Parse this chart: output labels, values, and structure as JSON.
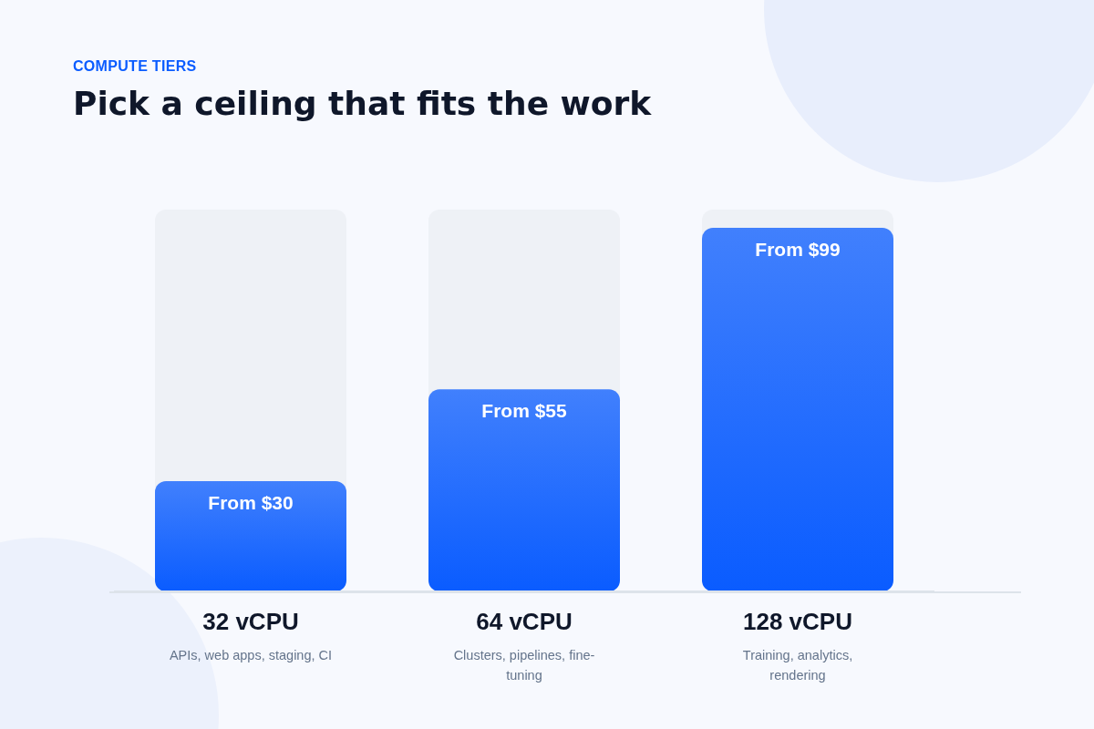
{
  "chart_data": {
    "type": "bar",
    "subtitle": "COMPUTE TIERS",
    "title": "Pick a ceiling that fits the work",
    "categories": [
      "32 vCPU",
      "64 vCPU",
      "128 vCPU"
    ],
    "values": [
      30,
      55,
      99
    ],
    "color": "#0a5cff",
    "value_labels": [
      "From $30",
      "From $55",
      "From $99"
    ],
    "annotations": [
      "APIs, web apps, staging, CI",
      "Clusters, pipelines, fine-tuning",
      "Training, analytics, rendering"
    ],
    "grid": false,
    "legend": false
  }
}
